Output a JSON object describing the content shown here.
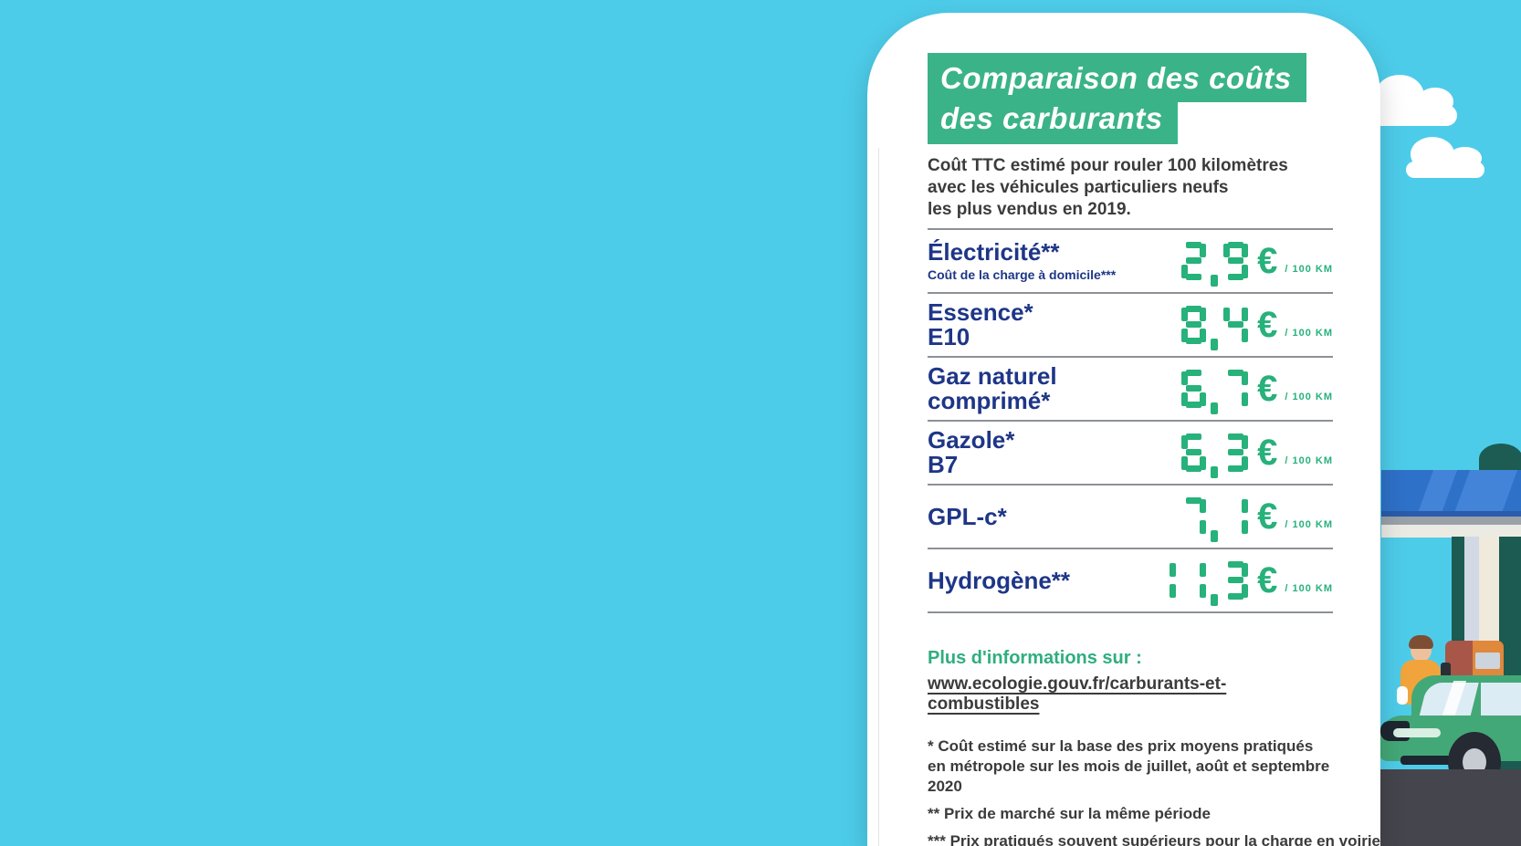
{
  "colors": {
    "background_cyan": "#4dcce9",
    "accent_green": "#3bb388",
    "lcd_green": "#27b17b",
    "label_navy": "#1e3687",
    "text_dark": "#3b3b3b"
  },
  "card": {
    "title_line1": "Comparaison des coûts",
    "title_line2": "des carburants",
    "subtitle_line1": "Coût TTC estimé pour rouler 100 kilomètres",
    "subtitle_line2": "avec les véhicules particuliers neufs",
    "subtitle_line3": "les plus vendus en 2019."
  },
  "table": {
    "unit": "€",
    "per": "/ 100 KM",
    "rows": [
      {
        "label": "Électricité**",
        "sublabel": "Coût de la charge à domicile***",
        "value": "2,9"
      },
      {
        "label": "Essence*",
        "label_line2": "E10",
        "value": "8,4"
      },
      {
        "label": "Gaz naturel",
        "label_line2": "comprimé*",
        "value": "6,7"
      },
      {
        "label": "Gazole*",
        "label_line2": "B7",
        "value": "6,3"
      },
      {
        "label": "GPL-c*",
        "value": "7,1"
      },
      {
        "label": "Hydrogène**",
        "value": "11,3"
      }
    ]
  },
  "info": {
    "heading": "Plus d'informations sur :",
    "link": "www.ecologie.gouv.fr/carburants-et-combustibles"
  },
  "footnotes": [
    "* Coût estimé sur la base des prix moyens pratiqués en métropole sur les mois de juillet, août et septembre 2020",
    "** Prix de marché sur la même période",
    "*** Prix pratiqués souvent supérieurs pour la charge en voirie"
  ],
  "chart_data": {
    "type": "table",
    "title": "Comparaison des coûts des carburants",
    "subtitle": "Coût TTC estimé pour rouler 100 kilomètres avec les véhicules particuliers neufs les plus vendus en 2019.",
    "categories": [
      "Électricité** (Coût de la charge à domicile***)",
      "Essence* E10",
      "Gaz naturel comprimé*",
      "Gazole* B7",
      "GPL-c*",
      "Hydrogène**"
    ],
    "values": [
      2.9,
      8.4,
      6.7,
      6.3,
      7.1,
      11.3
    ],
    "unit": "€ / 100 km",
    "notes": [
      "* Coût estimé sur la base des prix moyens pratiqués en métropole sur les mois de juillet, août et septembre 2020",
      "** Prix de marché sur la même période",
      "*** Prix pratiqués souvent supérieurs pour la charge en voirie"
    ],
    "source": "www.ecologie.gouv.fr/carburants-et-combustibles"
  }
}
